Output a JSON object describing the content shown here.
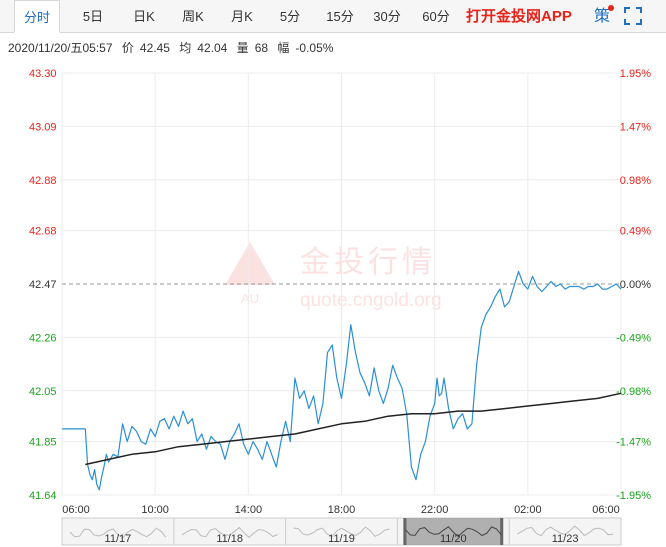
{
  "tabs": [
    {
      "label": "分时",
      "active": true
    },
    {
      "label": "5日",
      "active": false
    },
    {
      "label": "日K",
      "active": false
    },
    {
      "label": "周K",
      "active": false
    },
    {
      "label": "月K",
      "active": false
    },
    {
      "label": "5分",
      "active": false
    },
    {
      "label": "15分",
      "active": false
    },
    {
      "label": "30分",
      "active": false
    },
    {
      "label": "60分",
      "active": false
    }
  ],
  "toolbar": {
    "app_link": "打开金投网APP",
    "strategy_label": "策"
  },
  "icons": {
    "fullscreen": "fullscreen-icon"
  },
  "info": {
    "datetime": "2020/11/20/五05:57",
    "price_label": "价",
    "price": "42.45",
    "avg_label": "均",
    "avg": "42.04",
    "volume_label": "量",
    "volume": "68",
    "change_label": "幅",
    "change": "-0.05%"
  },
  "watermark": {
    "brand": "金投行情",
    "url": "quote.cngold.org",
    "badge": "AU"
  },
  "colors": {
    "up": "#e8231a",
    "down": "#1aa51a",
    "price_line": "#2a8fd4",
    "avg_line": "#222222",
    "grid": "#ececec",
    "baseline": "#9a9a9a"
  },
  "chart_data": {
    "type": "line",
    "base_price": 42.47,
    "ylim": [
      41.64,
      43.3
    ],
    "y_ticks": [
      "43.30",
      "43.09",
      "42.88",
      "42.68",
      "42.47",
      "42.26",
      "42.05",
      "41.85",
      "41.64"
    ],
    "y_tick_values": [
      43.3,
      43.09,
      42.88,
      42.68,
      42.47,
      42.26,
      42.05,
      41.85,
      41.64
    ],
    "pct_ticks": [
      "1.95%",
      "1.47%",
      "0.98%",
      "0.49%",
      "0.00%",
      "-0.49%",
      "-0.98%",
      "-1.47%",
      "-1.95%"
    ],
    "x_ticks": [
      "06:00",
      "10:00",
      "14:00",
      "18:00",
      "22:00",
      "02:00",
      "06:00"
    ],
    "x_tick_hours": [
      0,
      4,
      8,
      12,
      16,
      20,
      24
    ],
    "series": [
      {
        "kind": "price",
        "x": [
          0,
          0.1,
          0.3,
          0.5,
          0.7,
          0.9,
          1.0,
          1.1,
          1.2,
          1.3,
          1.4,
          1.5,
          1.6,
          1.7,
          1.8,
          1.9,
          2.0,
          2.2,
          2.4,
          2.6,
          2.8,
          3.0,
          3.2,
          3.4,
          3.6,
          3.8,
          4.0,
          4.2,
          4.4,
          4.6,
          4.8,
          5.0,
          5.2,
          5.4,
          5.6,
          5.8,
          6.0,
          6.2,
          6.4,
          6.6,
          6.8,
          7.0,
          7.2,
          7.4,
          7.6,
          7.8,
          8.0,
          8.2,
          8.4,
          8.6,
          8.8,
          9.0,
          9.2,
          9.4,
          9.6,
          9.8,
          10.0,
          10.2,
          10.4,
          10.6,
          10.8,
          11.0,
          11.2,
          11.4,
          11.6,
          11.8,
          12.0,
          12.2,
          12.4,
          12.6,
          12.8,
          13.0,
          13.2,
          13.4,
          13.6,
          13.8,
          14.0,
          14.2,
          14.4,
          14.6,
          14.8,
          15.0,
          15.2,
          15.4,
          15.6,
          15.8,
          16.0,
          16.1,
          16.2,
          16.3,
          16.4,
          16.6,
          16.8,
          17.0,
          17.2,
          17.4,
          17.6,
          17.8,
          18.0,
          18.2,
          18.4,
          18.6,
          18.8,
          19.0,
          19.2,
          19.4,
          19.6,
          19.8,
          20.0,
          20.2,
          20.4,
          20.6,
          20.8,
          21.0,
          21.2,
          21.4,
          21.6,
          21.8,
          22.0,
          22.2,
          22.4,
          22.6,
          22.8,
          23.0,
          23.2,
          23.4,
          23.6,
          23.8,
          24.0
        ],
        "values": [
          41.9,
          41.9,
          41.9,
          41.9,
          41.9,
          41.9,
          41.9,
          41.76,
          41.72,
          41.7,
          41.74,
          41.68,
          41.66,
          41.71,
          41.75,
          41.8,
          41.77,
          41.8,
          41.79,
          41.92,
          41.85,
          41.91,
          41.89,
          41.85,
          41.84,
          41.9,
          41.87,
          41.93,
          41.94,
          41.9,
          41.95,
          41.91,
          41.97,
          41.92,
          41.94,
          41.85,
          41.88,
          41.82,
          41.87,
          41.85,
          41.84,
          41.78,
          41.85,
          41.88,
          41.92,
          41.84,
          41.8,
          41.85,
          41.82,
          41.78,
          41.85,
          41.8,
          41.75,
          41.85,
          41.93,
          41.85,
          42.1,
          42.02,
          42.05,
          41.98,
          42.03,
          41.92,
          42.0,
          42.2,
          42.23,
          42.1,
          42.02,
          42.15,
          42.31,
          42.2,
          42.12,
          42.08,
          42.03,
          42.14,
          42.05,
          42.0,
          42.06,
          42.15,
          42.1,
          42.06,
          41.96,
          41.75,
          41.7,
          41.8,
          41.85,
          41.95,
          42.0,
          42.1,
          42.03,
          42.04,
          42.1,
          41.98,
          41.9,
          41.94,
          41.96,
          41.9,
          41.92,
          42.15,
          42.3,
          42.35,
          42.38,
          42.42,
          42.45,
          42.38,
          42.4,
          42.46,
          42.52,
          42.47,
          42.45,
          42.5,
          42.46,
          42.44,
          42.46,
          42.48,
          42.46,
          42.47,
          42.45,
          42.46,
          42.46,
          42.46,
          42.45,
          42.46,
          42.46,
          42.47,
          42.45,
          42.45,
          42.46,
          42.47,
          42.45
        ]
      },
      {
        "kind": "average",
        "x": [
          1.0,
          2.0,
          3.0,
          4.0,
          5.0,
          6.0,
          7.0,
          8.0,
          9.0,
          10.0,
          11.0,
          12.0,
          13.0,
          14.0,
          15.0,
          16.0,
          17.0,
          18.0,
          19.0,
          20.0,
          21.0,
          22.0,
          23.0,
          24.0
        ],
        "values": [
          41.76,
          41.78,
          41.8,
          41.81,
          41.83,
          41.84,
          41.85,
          41.86,
          41.87,
          41.88,
          41.9,
          41.92,
          41.93,
          41.95,
          41.96,
          41.96,
          41.97,
          41.97,
          41.98,
          41.99,
          42.0,
          42.01,
          42.02,
          42.04
        ]
      }
    ],
    "navigator": {
      "labels": [
        "11/17",
        "11/18",
        "11/19",
        "11/20",
        "11/23"
      ],
      "selected": "11/20"
    }
  }
}
